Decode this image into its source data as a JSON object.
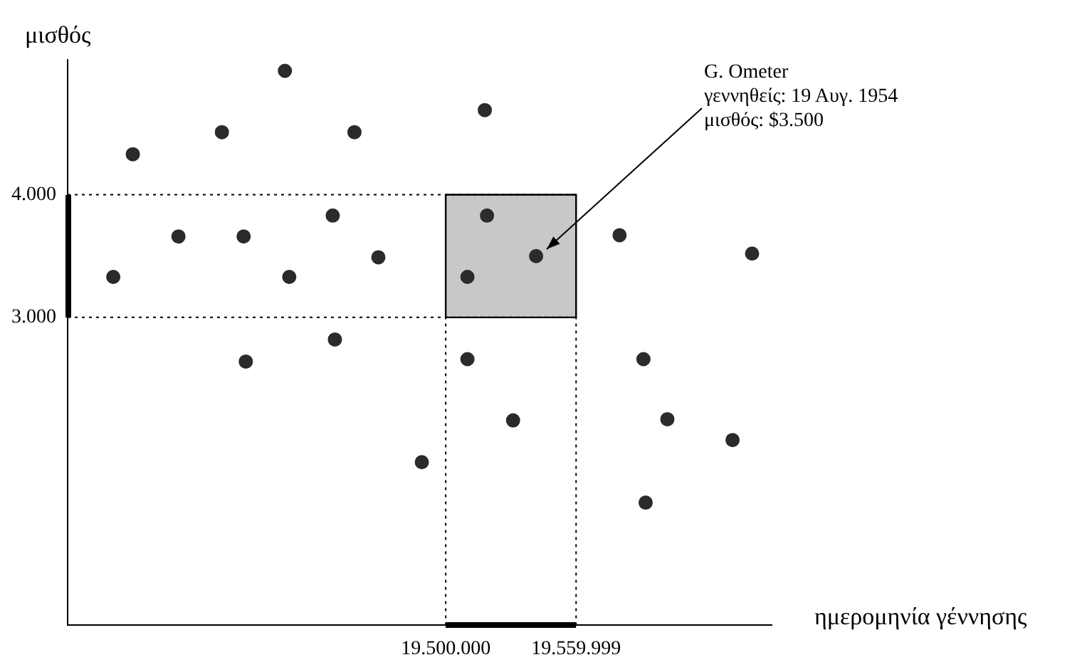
{
  "chart_data": {
    "type": "scatter",
    "xlabel": "ημερομηνία γέννησης",
    "ylabel": "μισθός",
    "x": [
      19347000,
      19356000,
      19377000,
      19397000,
      19407000,
      19408000,
      19426000,
      19428000,
      19448000,
      19449000,
      19458000,
      19469000,
      19489000,
      19510000,
      19510000,
      19518000,
      19519000,
      19531000,
      19541600,
      19580000,
      19591000,
      19592000,
      19602000,
      19632000,
      19641000
    ],
    "series": [
      {
        "color": "#2b2b2b",
        "values": [
          3330,
          4330,
          3660,
          4510,
          3660,
          2640,
          5010,
          3330,
          3830,
          2820,
          4510,
          3490,
          1820,
          3330,
          2660,
          4690,
          3830,
          2160,
          3500,
          3670,
          2660,
          1490,
          2170,
          2000,
          3520
        ]
      }
    ],
    "marker": "circle",
    "grid": false,
    "legend": false,
    "xlim": [
      19326000,
      19650000
    ],
    "ylim": [
      490,
      5100
    ],
    "xticks": [
      {
        "value": 19500000,
        "label": "19.500.000"
      },
      {
        "value": 19559999,
        "label": "19.559.999"
      }
    ],
    "yticks": [
      {
        "value": 3000,
        "label": "3.000"
      },
      {
        "value": 4000,
        "label": "4.000"
      }
    ],
    "ref_lines": [
      {
        "axis": "y",
        "value": 4000,
        "line_style": "dotted"
      },
      {
        "axis": "y",
        "value": 3000,
        "line_style": "dotted"
      },
      {
        "axis": "x",
        "value": 19500000,
        "line_style": "dotted"
      },
      {
        "axis": "x",
        "value": 19559999,
        "line_style": "dotted"
      }
    ],
    "bands": [
      {
        "axis": "x",
        "from": 19500000,
        "to": 19559999,
        "color": "#c8c8c8"
      }
    ],
    "annotations": [
      {
        "text": "G. Ometer\nγεννηθείς: 19 Αυγ. 1954\nμισθός: $3.500",
        "x": 19541600,
        "y": 3500
      }
    ]
  }
}
